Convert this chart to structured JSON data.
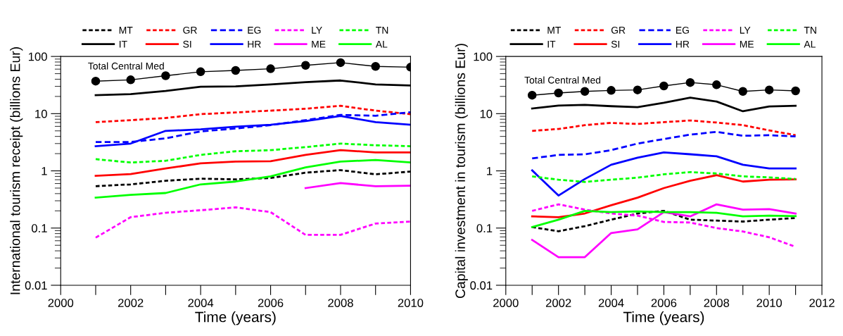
{
  "chart_data": [
    {
      "type": "line",
      "xlabel": "Time (years)",
      "ylabel": "International tourism receipt (billions Eur)",
      "log": "y",
      "grid": false,
      "legend": "top",
      "x": [
        2001,
        2002,
        2003,
        2004,
        2005,
        2006,
        2007,
        2008,
        2009,
        2010
      ],
      "xlim": [
        2000,
        2010
      ],
      "xticks": [
        2000,
        {
          "value": 2001,
          "label": null
        },
        2002,
        {
          "value": 2003,
          "label": null
        },
        2004,
        {
          "value": 2005,
          "label": null
        },
        2006,
        {
          "value": 2007,
          "label": null
        },
        2008,
        {
          "value": 2009,
          "label": null
        },
        2010
      ],
      "ylim": [
        0.01,
        100
      ],
      "yticks": [
        0.01,
        0.1,
        1,
        10,
        100
      ],
      "series": [
        {
          "name": "Total Central Med",
          "color": "#000000",
          "marker": "circle",
          "line_style": "solid",
          "values": [
            37,
            39,
            46,
            54,
            57,
            61,
            70,
            78,
            67,
            65
          ]
        },
        {
          "name": "MT",
          "color": "#000000",
          "line_style": "dotted",
          "values": [
            0.54,
            0.58,
            0.67,
            0.73,
            0.71,
            0.75,
            0.93,
            1.03,
            0.87,
            0.97
          ]
        },
        {
          "name": "IT",
          "color": "#000000",
          "line_style": "solid",
          "values": [
            21,
            22,
            25,
            29.5,
            30,
            32.5,
            35.5,
            38,
            32.5,
            31
          ]
        },
        {
          "name": "GR",
          "color": "#ff0000",
          "line_style": "dotted",
          "values": [
            7.1,
            7.7,
            8.4,
            9.8,
            10.5,
            11.3,
            12.2,
            13.7,
            11.3,
            9.8
          ]
        },
        {
          "name": "SI",
          "color": "#ff0000",
          "line_style": "solid",
          "values": [
            0.82,
            0.88,
            1.1,
            1.35,
            1.45,
            1.47,
            1.9,
            2.3,
            2.1,
            2.1
          ]
        },
        {
          "name": "EG",
          "color": "#0000ff",
          "line_style": "dashed",
          "values": [
            3.2,
            3.2,
            3.7,
            4.9,
            5.5,
            6.3,
            7.7,
            9.5,
            9.2,
            10.6
          ]
        },
        {
          "name": "HR",
          "color": "#0000ff",
          "line_style": "solid",
          "values": [
            2.7,
            3.0,
            5.0,
            5.3,
            5.9,
            6.4,
            7.4,
            9.1,
            7.1,
            6.4
          ]
        },
        {
          "name": "LY",
          "color": "#ff00ff",
          "line_style": "dotted",
          "values": [
            0.068,
            0.155,
            0.185,
            0.205,
            0.23,
            0.19,
            0.076,
            0.076,
            0.12,
            0.13
          ]
        },
        {
          "name": "ME",
          "color": "#ff00ff",
          "line_style": "solid",
          "values": [
            null,
            null,
            null,
            null,
            null,
            null,
            0.5,
            0.61,
            0.54,
            0.55
          ]
        },
        {
          "name": "TN",
          "color": "#00ff00",
          "line_style": "dotted",
          "values": [
            1.6,
            1.4,
            1.5,
            1.9,
            2.2,
            2.3,
            2.6,
            3.0,
            2.8,
            2.7
          ]
        },
        {
          "name": "AL",
          "color": "#00ff00",
          "line_style": "solid",
          "values": [
            0.34,
            0.38,
            0.41,
            0.58,
            0.65,
            0.8,
            1.15,
            1.45,
            1.55,
            1.4
          ]
        }
      ]
    },
    {
      "type": "line",
      "xlabel": "Time (years)",
      "ylabel": "Capital investment in tourism (billions Eur)",
      "log": "y",
      "grid": false,
      "legend": "top",
      "x": [
        2001,
        2002,
        2003,
        2004,
        2005,
        2006,
        2007,
        2008,
        2009,
        2010,
        2011
      ],
      "xlim": [
        2000,
        2012
      ],
      "xticks": [
        2000,
        {
          "value": 2001,
          "label": null
        },
        2002,
        {
          "value": 2003,
          "label": null
        },
        2004,
        {
          "value": 2005,
          "label": null
        },
        2006,
        {
          "value": 2007,
          "label": null
        },
        2008,
        {
          "value": 2009,
          "label": null
        },
        2010,
        {
          "value": 2011,
          "label": null
        },
        2012
      ],
      "ylim": [
        0.01,
        100
      ],
      "yticks": [
        0.01,
        0.1,
        1,
        10,
        100
      ],
      "series": [
        {
          "name": "Total Central Med",
          "color": "#000000",
          "marker": "circle",
          "line_style": "solid",
          "values": [
            21,
            23,
            24.5,
            25.5,
            26,
            30.5,
            35,
            32,
            24.5,
            26,
            25
          ]
        },
        {
          "name": "MT",
          "color": "#000000",
          "line_style": "dotted",
          "values": [
            0.104,
            0.088,
            0.108,
            0.14,
            0.18,
            0.2,
            0.14,
            0.135,
            0.13,
            0.14,
            0.15
          ]
        },
        {
          "name": "IT",
          "color": "#000000",
          "line_style": "solid",
          "values": [
            12.3,
            13.8,
            14.2,
            13.5,
            13,
            15.5,
            19,
            16.3,
            11,
            13.4,
            13.7
          ]
        },
        {
          "name": "GR",
          "color": "#ff0000",
          "line_style": "dotted",
          "values": [
            5.0,
            5.4,
            6.3,
            6.9,
            6.6,
            7.1,
            7.6,
            7.0,
            6.3,
            5.1,
            4.2
          ]
        },
        {
          "name": "SI",
          "color": "#ff0000",
          "line_style": "solid",
          "values": [
            0.16,
            0.155,
            0.18,
            0.25,
            0.34,
            0.5,
            0.67,
            0.84,
            0.65,
            0.7,
            0.71
          ]
        },
        {
          "name": "EG",
          "color": "#0000ff",
          "line_style": "dashed",
          "values": [
            1.65,
            1.9,
            1.95,
            2.3,
            3.0,
            3.6,
            4.3,
            4.8,
            4.1,
            4.2,
            4.0
          ]
        },
        {
          "name": "HR",
          "color": "#0000ff",
          "line_style": "solid",
          "values": [
            1.02,
            0.37,
            0.72,
            1.28,
            1.7,
            2.1,
            1.95,
            1.8,
            1.28,
            1.1,
            1.1
          ]
        },
        {
          "name": "LY",
          "color": "#ff00ff",
          "line_style": "dotted",
          "values": [
            0.2,
            0.26,
            0.21,
            0.18,
            0.165,
            0.128,
            0.125,
            0.1,
            0.087,
            0.069,
            0.047
          ]
        },
        {
          "name": "ME",
          "color": "#ff00ff",
          "line_style": "solid",
          "values": [
            0.062,
            0.031,
            0.031,
            0.082,
            0.095,
            0.19,
            0.16,
            0.26,
            0.21,
            0.215,
            0.18
          ]
        },
        {
          "name": "TN",
          "color": "#00ff00",
          "line_style": "dotted",
          "values": [
            0.8,
            0.7,
            0.64,
            0.7,
            0.76,
            0.87,
            0.95,
            0.9,
            0.8,
            0.77,
            0.72
          ]
        },
        {
          "name": "AL",
          "color": "#00ff00",
          "line_style": "solid",
          "values": [
            0.104,
            0.14,
            0.2,
            0.19,
            0.195,
            0.19,
            0.19,
            0.185,
            0.16,
            0.165,
            0.162
          ]
        }
      ]
    }
  ]
}
